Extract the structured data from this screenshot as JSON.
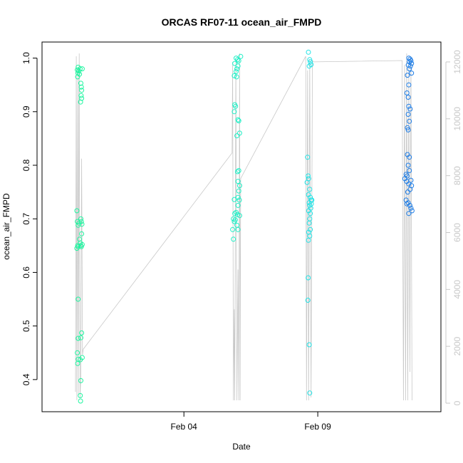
{
  "chart_data": {
    "type": "scatter",
    "title": "ORCAS RF07-11 ocean_air_FMPD",
    "xlabel": "Date",
    "ylabel": "ocean_air_FMPD",
    "x_tick_labels": [
      "Feb 04",
      "Feb 09"
    ],
    "x_tick_days": [
      4.0,
      9.0
    ],
    "xlim_days": [
      -1.3,
      13.6
    ],
    "ylim": [
      0.34,
      1.03
    ],
    "y_ticks": [
      "0.4",
      "0.5",
      "0.6",
      "0.7",
      "0.8",
      "0.9",
      "1.0"
    ],
    "y2_ticks": [
      "0",
      "2000",
      "4000",
      "6000",
      "8000",
      "10000",
      "12000"
    ],
    "y2lim": [
      -300,
      12700
    ],
    "grid": false,
    "altitude_color": "#c8c8c8",
    "flight_colors": [
      "#1ff5a0",
      "#1ef0c6",
      "#22e3e6",
      "#1e7de6"
    ],
    "series": [
      {
        "color": "#1ff5a0",
        "points": [
          [
            0.02,
            0.978
          ],
          [
            0.04,
            0.972
          ],
          [
            0.03,
            0.965
          ],
          [
            0.05,
            0.983
          ],
          [
            0.07,
            0.976
          ],
          [
            0.1,
            0.97
          ],
          [
            0.12,
            0.98
          ],
          [
            0.15,
            0.953
          ],
          [
            0.17,
            0.946
          ],
          [
            0.2,
            0.98
          ],
          [
            0.16,
            0.93
          ],
          [
            0.18,
            0.925
          ],
          [
            0.14,
            0.918
          ],
          [
            0.18,
            0.94
          ],
          [
            0.0,
            0.715
          ],
          [
            0.02,
            0.695
          ],
          [
            0.05,
            0.688
          ],
          [
            0.08,
            0.692
          ],
          [
            0.15,
            0.7
          ],
          [
            0.17,
            0.695
          ],
          [
            0.19,
            0.69
          ],
          [
            0.18,
            0.672
          ],
          [
            0.0,
            0.645
          ],
          [
            0.03,
            0.65
          ],
          [
            0.1,
            0.662
          ],
          [
            0.13,
            0.655
          ],
          [
            0.15,
            0.65
          ],
          [
            0.17,
            0.648
          ],
          [
            0.2,
            0.652
          ],
          [
            0.05,
            0.648
          ],
          [
            0.05,
            0.55
          ],
          [
            0.05,
            0.477
          ],
          [
            0.15,
            0.478
          ],
          [
            0.18,
            0.487
          ],
          [
            0.02,
            0.45
          ],
          [
            0.05,
            0.438
          ],
          [
            0.03,
            0.43
          ],
          [
            0.2,
            0.441
          ],
          [
            0.13,
            0.437
          ],
          [
            0.15,
            0.398
          ],
          [
            0.13,
            0.37
          ],
          [
            0.14,
            0.36
          ]
        ]
      },
      {
        "color": "#1ef0c6",
        "points": [
          [
            5.95,
            1.0
          ],
          [
            6.0,
            0.997
          ],
          [
            6.05,
            0.995
          ],
          [
            6.12,
            1.003
          ],
          [
            5.9,
            0.99
          ],
          [
            6.02,
            0.985
          ],
          [
            5.98,
            0.98
          ],
          [
            5.95,
            0.975
          ],
          [
            5.88,
            0.967
          ],
          [
            5.97,
            0.965
          ],
          [
            5.9,
            0.913
          ],
          [
            5.93,
            0.91
          ],
          [
            5.88,
            0.9
          ],
          [
            6.02,
            0.885
          ],
          [
            6.05,
            0.883
          ],
          [
            6.08,
            0.86
          ],
          [
            5.98,
            0.855
          ],
          [
            6.0,
            0.788
          ],
          [
            6.05,
            0.79
          ],
          [
            6.02,
            0.77
          ],
          [
            6.08,
            0.762
          ],
          [
            6.05,
            0.752
          ],
          [
            6.02,
            0.74
          ],
          [
            6.07,
            0.735
          ],
          [
            5.88,
            0.736
          ],
          [
            6.02,
            0.725
          ],
          [
            5.9,
            0.71
          ],
          [
            5.95,
            0.712
          ],
          [
            6.0,
            0.708
          ],
          [
            6.08,
            0.706
          ],
          [
            5.85,
            0.7
          ],
          [
            5.88,
            0.695
          ],
          [
            5.92,
            0.698
          ],
          [
            5.98,
            0.688
          ],
          [
            5.82,
            0.68
          ],
          [
            6.02,
            0.68
          ],
          [
            5.85,
            0.662
          ]
        ]
      },
      {
        "color": "#22e3e6",
        "points": [
          [
            8.65,
            1.011
          ],
          [
            8.7,
            0.997
          ],
          [
            8.72,
            0.993
          ],
          [
            8.75,
            0.988
          ],
          [
            8.68,
            0.985
          ],
          [
            8.62,
            0.815
          ],
          [
            8.64,
            0.78
          ],
          [
            8.66,
            0.775
          ],
          [
            8.6,
            0.768
          ],
          [
            8.7,
            0.755
          ],
          [
            8.65,
            0.745
          ],
          [
            8.72,
            0.74
          ],
          [
            8.75,
            0.735
          ],
          [
            8.68,
            0.73
          ],
          [
            8.7,
            0.725
          ],
          [
            8.74,
            0.72
          ],
          [
            8.66,
            0.715
          ],
          [
            8.72,
            0.71
          ],
          [
            8.78,
            0.735
          ],
          [
            8.76,
            0.728
          ],
          [
            8.7,
            0.7
          ],
          [
            8.68,
            0.692
          ],
          [
            8.72,
            0.68
          ],
          [
            8.66,
            0.675
          ],
          [
            8.7,
            0.668
          ],
          [
            8.65,
            0.66
          ],
          [
            8.64,
            0.59
          ],
          [
            8.63,
            0.548
          ],
          [
            8.68,
            0.465
          ],
          [
            8.7,
            0.375
          ]
        ]
      },
      {
        "color": "#1e7de6",
        "points": [
          [
            12.4,
            1.0
          ],
          [
            12.45,
            0.998
          ],
          [
            12.48,
            0.995
          ],
          [
            12.42,
            0.993
          ],
          [
            12.5,
            0.99
          ],
          [
            12.38,
            0.987
          ],
          [
            12.46,
            0.985
          ],
          [
            12.42,
            0.98
          ],
          [
            12.5,
            0.972
          ],
          [
            12.35,
            0.968
          ],
          [
            12.4,
            0.95
          ],
          [
            12.33,
            0.935
          ],
          [
            12.38,
            0.927
          ],
          [
            12.4,
            0.91
          ],
          [
            12.45,
            0.905
          ],
          [
            12.38,
            0.895
          ],
          [
            12.42,
            0.882
          ],
          [
            12.35,
            0.87
          ],
          [
            12.38,
            0.866
          ],
          [
            12.35,
            0.82
          ],
          [
            12.42,
            0.815
          ],
          [
            12.38,
            0.8
          ],
          [
            12.3,
            0.783
          ],
          [
            12.34,
            0.78
          ],
          [
            12.42,
            0.79
          ],
          [
            12.48,
            0.772
          ],
          [
            12.25,
            0.775
          ],
          [
            12.32,
            0.77
          ],
          [
            12.4,
            0.765
          ],
          [
            12.5,
            0.762
          ],
          [
            12.45,
            0.755
          ],
          [
            12.36,
            0.75
          ],
          [
            12.3,
            0.735
          ],
          [
            12.38,
            0.73
          ],
          [
            12.44,
            0.725
          ],
          [
            12.48,
            0.72
          ],
          [
            12.52,
            0.715
          ],
          [
            12.4,
            0.71
          ],
          [
            12.33,
            0.728
          ]
        ]
      }
    ],
    "altitude": [
      [
        -0.05,
        400
      ],
      [
        -0.02,
        12200
      ],
      [
        0.0,
        100
      ],
      [
        0.04,
        11800
      ],
      [
        0.06,
        300
      ],
      [
        0.09,
        12300
      ],
      [
        0.12,
        200
      ],
      [
        0.15,
        1000
      ],
      [
        0.18,
        8600
      ],
      [
        0.21,
        1700
      ],
      [
        0.24,
        1900
      ],
      [
        5.8,
        8800
      ],
      [
        5.82,
        12000
      ],
      [
        5.85,
        100
      ],
      [
        5.88,
        3300
      ],
      [
        5.9,
        100
      ],
      [
        5.94,
        12100
      ],
      [
        5.98,
        100
      ],
      [
        6.02,
        4700
      ],
      [
        6.05,
        100
      ],
      [
        6.08,
        12300
      ],
      [
        6.1,
        100
      ],
      [
        6.12,
        7900
      ],
      [
        8.55,
        12200
      ],
      [
        8.58,
        100
      ],
      [
        8.62,
        11700
      ],
      [
        8.66,
        100
      ],
      [
        8.7,
        12100
      ],
      [
        8.75,
        200
      ],
      [
        8.8,
        12050
      ],
      [
        8.84,
        12000
      ],
      [
        12.15,
        12050
      ],
      [
        12.2,
        100
      ],
      [
        12.24,
        11900
      ],
      [
        12.28,
        100
      ],
      [
        12.32,
        12300
      ],
      [
        12.36,
        100
      ],
      [
        12.4,
        11800
      ],
      [
        12.44,
        1100
      ],
      [
        12.48,
        12200
      ],
      [
        12.52,
        100
      ]
    ]
  }
}
